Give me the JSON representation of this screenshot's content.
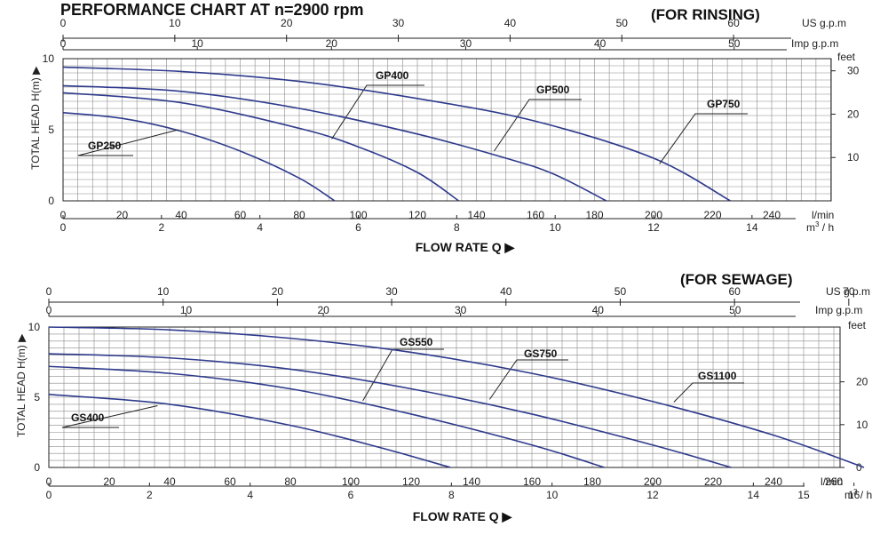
{
  "charts": {
    "title": "PERFORMANCE CHART AT n=2900 rpm",
    "flow_label": "FLOW RATE Q",
    "head_label": "TOTAL HEAD H(m)",
    "unit_us": "US g.p.m",
    "unit_imp": "Imp  g.p.m",
    "unit_feet": "feet",
    "unit_lmin": "l/min",
    "unit_m3h_base": "m",
    "unit_m3h_sup": "3",
    "unit_m3h_tail": " / h"
  },
  "chart_data": [
    {
      "type": "line",
      "section_title": "(FOR RINSING)",
      "x_unit": "l/min",
      "y_unit": "m",
      "xlim": [
        0,
        260
      ],
      "ylim": [
        0,
        10
      ],
      "x_ticks": [
        0,
        20,
        40,
        60,
        80,
        100,
        120,
        140,
        160,
        180,
        200,
        220,
        240
      ],
      "y_ticks": [
        0,
        5,
        10
      ],
      "us_gpm_ticks": [
        0,
        10,
        20,
        30,
        40,
        50,
        60
      ],
      "imp_gpm_ticks": [
        0,
        10,
        20,
        30,
        40,
        50
      ],
      "m3h_ticks": [
        0,
        2,
        4,
        6,
        8,
        10,
        12,
        14
      ],
      "feet_ticks": [
        10,
        20,
        30
      ],
      "series": [
        {
          "name": "GP250",
          "x": [
            0,
            20,
            40,
            60,
            80,
            92
          ],
          "y": [
            6.2,
            5.8,
            4.9,
            3.5,
            1.6,
            0
          ]
        },
        {
          "name": "GP400",
          "x": [
            0,
            40,
            80,
            100,
            120,
            134
          ],
          "y": [
            7.6,
            6.9,
            5.1,
            3.8,
            2.0,
            0
          ]
        },
        {
          "name": "GP500",
          "x": [
            0,
            40,
            80,
            120,
            150,
            166,
            184
          ],
          "y": [
            8.1,
            7.7,
            6.5,
            4.7,
            3.0,
            1.9,
            0
          ]
        },
        {
          "name": "GP750",
          "x": [
            0,
            40,
            80,
            120,
            160,
            200,
            226
          ],
          "y": [
            9.4,
            9.1,
            8.4,
            7.2,
            5.6,
            3.0,
            0
          ]
        }
      ]
    },
    {
      "type": "line",
      "section_title": "(FOR SEWAGE)",
      "x_unit": "l/min",
      "y_unit": "m",
      "xlim": [
        0,
        270
      ],
      "ylim": [
        0,
        10
      ],
      "x_ticks": [
        0,
        20,
        40,
        60,
        80,
        100,
        120,
        140,
        160,
        180,
        200,
        220,
        240,
        260
      ],
      "y_ticks": [
        0,
        5,
        10
      ],
      "us_gpm_ticks": [
        0,
        10,
        20,
        30,
        40,
        50,
        60,
        70
      ],
      "imp_gpm_ticks": [
        0,
        10,
        20,
        30,
        40,
        50
      ],
      "m3h_ticks": [
        0,
        2,
        4,
        6,
        8,
        10,
        12,
        14,
        15,
        16
      ],
      "feet_ticks": [
        0,
        10,
        20
      ],
      "series": [
        {
          "name": "GS400",
          "x": [
            0,
            40,
            80,
            110,
            133
          ],
          "y": [
            5.2,
            4.5,
            3.0,
            1.4,
            0
          ]
        },
        {
          "name": "GS550",
          "x": [
            0,
            40,
            80,
            120,
            160,
            184
          ],
          "y": [
            7.2,
            6.7,
            5.6,
            3.8,
            1.6,
            0
          ]
        },
        {
          "name": "GS750",
          "x": [
            0,
            40,
            80,
            120,
            160,
            200,
            226
          ],
          "y": [
            8.1,
            7.8,
            7.0,
            5.6,
            3.8,
            1.6,
            0
          ]
        },
        {
          "name": "GS1100",
          "x": [
            0,
            40,
            80,
            120,
            160,
            200,
            240,
            270
          ],
          "y": [
            10.0,
            9.8,
            9.2,
            8.2,
            6.7,
            4.7,
            2.3,
            0
          ]
        }
      ]
    }
  ]
}
